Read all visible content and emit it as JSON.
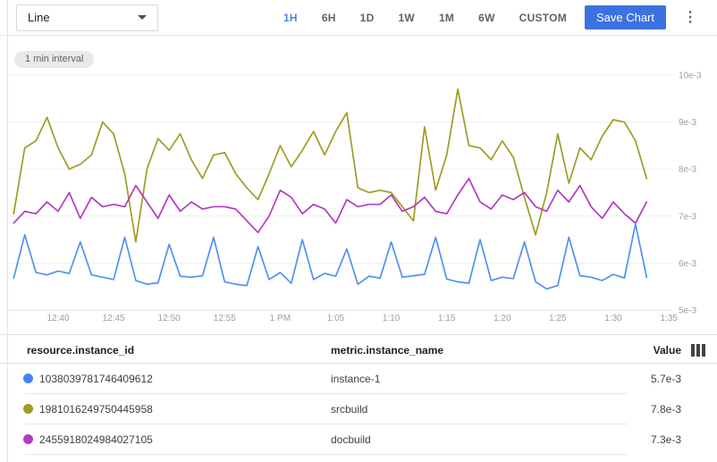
{
  "toolbar": {
    "chart_type": "Line",
    "time_ranges": [
      "1H",
      "6H",
      "1D",
      "1W",
      "1M",
      "6W",
      "CUSTOM"
    ],
    "selected_range": "1H",
    "save_button": "Save Chart",
    "more_icon": "more-vertical",
    "accent_color": "#4285f4",
    "save_button_color": "#3b72e0"
  },
  "chart": {
    "interval_badge": "1 min interval"
  },
  "chart_data": {
    "type": "line",
    "title": "",
    "x_start": "12:36 PM",
    "x_interval_minutes": 1,
    "x_tick_labels": [
      "12:40",
      "12:45",
      "12:50",
      "12:55",
      "1 PM",
      "1:05",
      "1:10",
      "1:15",
      "1:20",
      "1:25",
      "1:30",
      "1:35"
    ],
    "y_tick_labels": [
      "10e-3",
      "9e-3",
      "8e-3",
      "7e-3",
      "6e-3",
      "5e-3"
    ],
    "ylim_e3": [
      5,
      10
    ],
    "grid": true,
    "legend_position": "bottom-table",
    "series": [
      {
        "name": "instance-1",
        "color": "#5291f0",
        "values_e3": [
          5.68,
          6.6,
          5.8,
          5.75,
          5.83,
          5.78,
          6.45,
          5.75,
          5.7,
          5.65,
          6.55,
          5.63,
          5.55,
          5.58,
          6.4,
          5.72,
          5.7,
          5.73,
          6.55,
          5.6,
          5.55,
          5.52,
          6.35,
          5.65,
          5.8,
          5.57,
          6.5,
          5.65,
          5.78,
          5.72,
          6.3,
          5.55,
          5.72,
          5.68,
          6.45,
          5.7,
          5.73,
          5.76,
          6.55,
          5.66,
          5.6,
          5.57,
          6.5,
          5.63,
          5.7,
          5.67,
          6.45,
          5.6,
          5.45,
          5.52,
          6.55,
          5.73,
          5.7,
          5.63,
          5.76,
          5.68,
          6.83,
          5.7
        ]
      },
      {
        "name": "srcbuild",
        "color": "#9e9d24",
        "values_e3": [
          7.05,
          8.45,
          8.6,
          9.1,
          8.45,
          8.0,
          8.1,
          8.3,
          9.0,
          8.75,
          7.9,
          6.45,
          8.0,
          8.65,
          8.4,
          8.75,
          8.2,
          7.8,
          8.3,
          8.35,
          7.9,
          7.6,
          7.35,
          7.9,
          8.5,
          8.05,
          8.4,
          8.8,
          8.3,
          8.8,
          9.2,
          7.6,
          7.5,
          7.55,
          7.5,
          7.2,
          6.9,
          8.9,
          7.55,
          8.3,
          9.7,
          8.5,
          8.45,
          8.2,
          8.6,
          8.25,
          7.4,
          6.6,
          7.5,
          8.75,
          7.7,
          8.45,
          8.2,
          8.7,
          9.05,
          9.0,
          8.6,
          7.8
        ]
      },
      {
        "name": "docbuild",
        "color": "#b23cbe",
        "values_e3": [
          6.85,
          7.1,
          7.05,
          7.3,
          7.1,
          7.5,
          6.95,
          7.4,
          7.2,
          7.25,
          7.2,
          7.65,
          7.3,
          6.95,
          7.45,
          7.1,
          7.3,
          7.15,
          7.2,
          7.2,
          7.15,
          6.9,
          6.65,
          7.0,
          7.55,
          7.4,
          7.05,
          7.25,
          7.15,
          6.85,
          7.35,
          7.2,
          7.25,
          7.25,
          7.45,
          7.1,
          7.2,
          7.4,
          7.1,
          7.05,
          7.45,
          7.8,
          7.3,
          7.15,
          7.45,
          7.35,
          7.5,
          7.2,
          7.1,
          7.55,
          7.3,
          7.65,
          7.2,
          6.95,
          7.3,
          7.05,
          6.85,
          7.3
        ]
      }
    ]
  },
  "table": {
    "columns": [
      "resource.instance_id",
      "metric.instance_name",
      "Value"
    ],
    "column_icon": "view-column",
    "rows": [
      {
        "color": "#4285f4",
        "instance_id": "1038039781746409612",
        "instance_name": "instance-1",
        "value": "5.7e-3"
      },
      {
        "color": "#9e9d24",
        "instance_id": "1981016249750445958",
        "instance_name": "srcbuild",
        "value": "7.8e-3"
      },
      {
        "color": "#b23cbe",
        "instance_id": "2455918024984027105",
        "instance_name": "docbuild",
        "value": "7.3e-3"
      }
    ]
  }
}
